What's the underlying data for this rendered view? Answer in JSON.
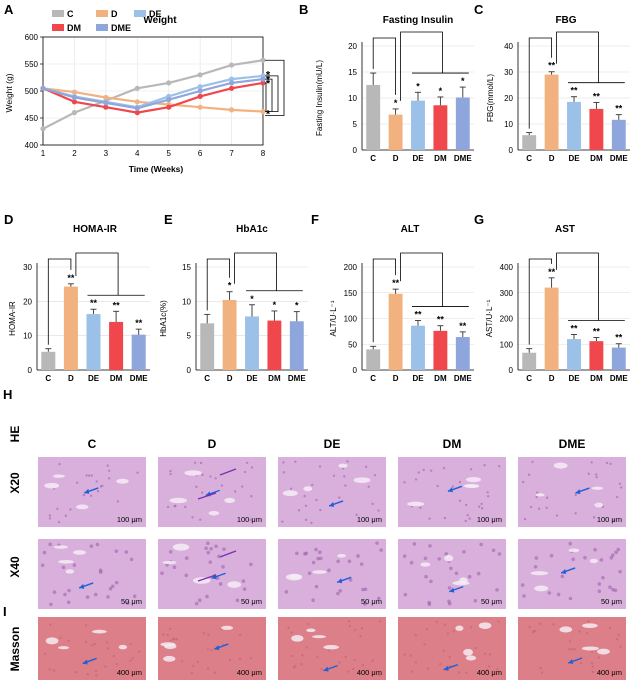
{
  "colors": {
    "C": "#b8b8b8",
    "D": "#f2b27f",
    "DE": "#9cc1e9",
    "DM": "#f0474d",
    "DME": "#8fa6dd",
    "tissue_he": "#d9b0dc",
    "tissue_masson": "#dd7f88"
  },
  "panel_a": {
    "letter": "A",
    "title": "Weight",
    "xlabel": "Time (Weeks)",
    "ylabel": "Weight (g)",
    "xticks": [
      "1",
      "2",
      "3",
      "4",
      "5",
      "6",
      "7",
      "8"
    ],
    "yticks": [
      "400",
      "450",
      "500",
      "550",
      "600"
    ],
    "legend": [
      "C",
      "D",
      "DE",
      "DM",
      "DME"
    ],
    "stars": [
      "*",
      "*",
      "*",
      "*"
    ]
  },
  "chart_data": [
    {
      "type": "line",
      "title": "Weight",
      "xlabel": "Time (Weeks)",
      "ylabel": "Weight (g)",
      "x": [
        1,
        2,
        3,
        4,
        5,
        6,
        7,
        8
      ],
      "ylim": [
        400,
        600
      ],
      "series": [
        {
          "name": "C",
          "values": [
            430,
            460,
            482,
            505,
            515,
            530,
            548,
            557
          ]
        },
        {
          "name": "D",
          "values": [
            505,
            498,
            488,
            480,
            475,
            470,
            465,
            462
          ]
        },
        {
          "name": "DE",
          "values": [
            505,
            490,
            480,
            470,
            490,
            508,
            522,
            528
          ]
        },
        {
          "name": "DM",
          "values": [
            505,
            480,
            470,
            460,
            470,
            490,
            505,
            515
          ]
        },
        {
          "name": "DME",
          "values": [
            505,
            488,
            478,
            468,
            484,
            500,
            515,
            522
          ]
        }
      ]
    },
    {
      "type": "bar",
      "letter": "B",
      "title": "Fasting Insulin",
      "ylabel": "Fasting Insulin(mU/L)",
      "categories": [
        "C",
        "D",
        "DE",
        "DM",
        "DME"
      ],
      "values": [
        12.5,
        6.8,
        9.5,
        8.6,
        10.1
      ],
      "errors": [
        2.3,
        1.1,
        1.6,
        1.6,
        2.0
      ],
      "ylim": [
        0,
        20
      ],
      "yticks": [
        "0",
        "5",
        "10",
        "15",
        "20"
      ],
      "stars": [
        "",
        "*",
        "*",
        "*",
        "*"
      ]
    },
    {
      "type": "bar",
      "letter": "C",
      "title": "FBG",
      "ylabel": "FBG(mmol/L)",
      "categories": [
        "C",
        "D",
        "DE",
        "DM",
        "DME"
      ],
      "values": [
        5.7,
        29,
        18.5,
        15.8,
        11.6
      ],
      "errors": [
        1.0,
        1.1,
        2.0,
        2.5,
        2.0
      ],
      "ylim": [
        0,
        40
      ],
      "yticks": [
        "0",
        "10",
        "20",
        "30",
        "40"
      ],
      "stars": [
        "",
        "**",
        "**",
        "**",
        "**"
      ]
    },
    {
      "type": "bar",
      "letter": "D",
      "title": "HOMA-IR",
      "ylabel": "HOMA-IR",
      "categories": [
        "C",
        "D",
        "DE",
        "DM",
        "DME"
      ],
      "values": [
        5.3,
        24.3,
        16.3,
        14,
        10.3
      ],
      "errors": [
        0.9,
        0.8,
        1.4,
        3.1,
        1.6
      ],
      "ylim": [
        0,
        30
      ],
      "yticks": [
        "0",
        "10",
        "20",
        "30"
      ],
      "stars": [
        "",
        "**",
        "**",
        "**",
        "**"
      ]
    },
    {
      "type": "bar",
      "letter": "E",
      "title": "HbA1c",
      "ylabel": "HbA1c(%)",
      "categories": [
        "C",
        "D",
        "DE",
        "DM",
        "DME"
      ],
      "values": [
        6.8,
        10.2,
        7.8,
        7.2,
        7.1
      ],
      "errors": [
        1.3,
        1.2,
        1.7,
        1.4,
        1.4
      ],
      "ylim": [
        0,
        15
      ],
      "yticks": [
        "0",
        "5",
        "10",
        "15"
      ],
      "stars": [
        "",
        "*",
        "*",
        "*",
        "*"
      ]
    },
    {
      "type": "bar",
      "letter": "F",
      "title": "ALT",
      "ylabel": "ALT/U·L⁻¹",
      "categories": [
        "C",
        "D",
        "DE",
        "DM",
        "DME"
      ],
      "values": [
        40,
        148,
        86,
        76,
        64
      ],
      "errors": [
        6,
        9,
        10,
        10,
        10
      ],
      "ylim": [
        0,
        200
      ],
      "yticks": [
        "0",
        "50",
        "100",
        "150",
        "200"
      ],
      "stars": [
        "",
        "**",
        "**",
        "**",
        "**"
      ]
    },
    {
      "type": "bar",
      "letter": "G",
      "title": "AST",
      "ylabel": "AST/U·L⁻¹",
      "categories": [
        "C",
        "D",
        "DE",
        "DM",
        "DME"
      ],
      "values": [
        67,
        320,
        120,
        112,
        87
      ],
      "errors": [
        16,
        38,
        18,
        14,
        15
      ],
      "ylim": [
        0,
        400
      ],
      "yticks": [
        "0",
        "100",
        "200",
        "300",
        "400"
      ],
      "stars": [
        "",
        "**",
        "**",
        "**",
        "**"
      ]
    }
  ],
  "histology": {
    "letter_h": "H",
    "letter_i": "I",
    "stain_he": "HE",
    "rows": [
      "X20",
      "X40",
      "Masson"
    ],
    "cols": [
      "C",
      "D",
      "DE",
      "DM",
      "DME"
    ],
    "scales": [
      "100 μm",
      "50 μm",
      "400 μm"
    ]
  }
}
